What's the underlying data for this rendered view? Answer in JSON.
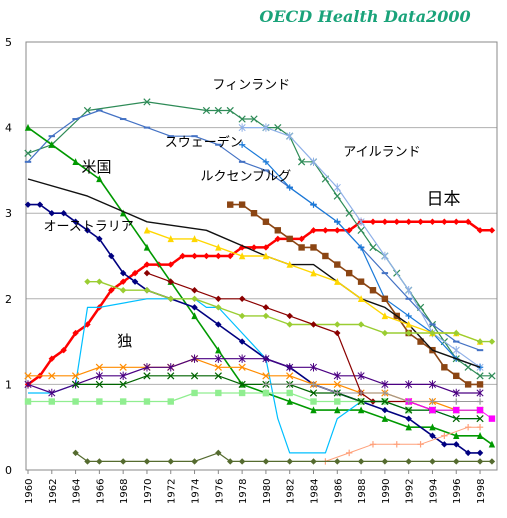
{
  "chart_data": {
    "type": "line",
    "title": "OECD Health Data2000",
    "title_color": "#1aa37a",
    "xlabel": "",
    "ylabel": "",
    "xlim": [
      1960,
      1999
    ],
    "ylim": [
      0,
      5
    ],
    "x_ticks": [
      1960,
      1962,
      1964,
      1966,
      1968,
      1970,
      1972,
      1974,
      1976,
      1978,
      1980,
      1982,
      1984,
      1986,
      1988,
      1990,
      1992,
      1994,
      1996,
      1998
    ],
    "y_ticks": [
      0,
      1,
      2,
      3,
      4,
      5
    ],
    "grid": "horizontal",
    "series": [
      {
        "name": "日本",
        "color": "#ff0000",
        "marker": "diamond",
        "width": 2.5,
        "x": [
          1960,
          1961,
          1962,
          1963,
          1964,
          1965,
          1966,
          1967,
          1968,
          1969,
          1970,
          1971,
          1972,
          1973,
          1974,
          1975,
          1976,
          1977,
          1978,
          1979,
          1980,
          1981,
          1982,
          1983,
          1984,
          1985,
          1986,
          1987,
          1988,
          1989,
          1990,
          1991,
          1992,
          1993,
          1994,
          1995,
          1996,
          1997,
          1998,
          1999
        ],
        "y": [
          1.0,
          1.1,
          1.3,
          1.4,
          1.6,
          1.7,
          1.9,
          2.1,
          2.2,
          2.3,
          2.4,
          2.4,
          2.4,
          2.5,
          2.5,
          2.5,
          2.5,
          2.5,
          2.6,
          2.6,
          2.6,
          2.7,
          2.7,
          2.7,
          2.8,
          2.8,
          2.8,
          2.8,
          2.9,
          2.9,
          2.9,
          2.9,
          2.9,
          2.9,
          2.9,
          2.9,
          2.9,
          2.9,
          2.8,
          2.8
        ]
      },
      {
        "name": "フィンランド",
        "color": "#2e8b57",
        "marker": "cross",
        "width": 1.2,
        "x": [
          1960,
          1962,
          1965,
          1970,
          1975,
          1976,
          1977,
          1978,
          1979,
          1980,
          1981,
          1982,
          1983,
          1984,
          1985,
          1986,
          1987,
          1988,
          1989,
          1990,
          1991,
          1992,
          1993,
          1994,
          1995,
          1996,
          1997,
          1998,
          1999
        ],
        "y": [
          3.7,
          3.8,
          4.2,
          4.3,
          4.2,
          4.2,
          4.2,
          4.1,
          4.1,
          4.0,
          4.0,
          3.9,
          3.6,
          3.6,
          3.4,
          3.2,
          3.0,
          2.8,
          2.6,
          2.5,
          2.3,
          2.1,
          1.9,
          1.7,
          1.5,
          1.3,
          1.2,
          1.1,
          1.1
        ]
      },
      {
        "name": "スウェーデン",
        "color": "#4472c4",
        "marker": "dash",
        "width": 1.2,
        "x": [
          1960,
          1962,
          1964,
          1966,
          1968,
          1970,
          1972,
          1974,
          1976,
          1978,
          1980,
          1982,
          1984,
          1986,
          1988,
          1990,
          1992,
          1994,
          1996,
          1998
        ],
        "y": [
          3.6,
          3.9,
          4.1,
          4.2,
          4.1,
          4.0,
          3.9,
          3.9,
          3.8,
          3.6,
          3.5,
          3.3,
          3.1,
          2.9,
          2.6,
          2.3,
          2.0,
          1.7,
          1.5,
          1.4
        ]
      },
      {
        "name": "アイルランド",
        "color": "#8fb0e8",
        "marker": "star",
        "width": 1.2,
        "x": [
          1978,
          1980,
          1982,
          1984,
          1986,
          1988,
          1990,
          1992,
          1994,
          1996,
          1998
        ],
        "y": [
          4.0,
          4.0,
          3.9,
          3.6,
          3.3,
          2.9,
          2.5,
          2.1,
          1.6,
          1.4,
          1.2
        ]
      },
      {
        "name": "",
        "color": "#1a7ad9",
        "marker": "plus",
        "width": 1.2,
        "x": [
          1978,
          1980,
          1982,
          1984,
          1986,
          1988,
          1990,
          1992,
          1994,
          1996,
          1998
        ],
        "y": [
          3.8,
          3.6,
          3.3,
          3.1,
          2.9,
          2.6,
          2.0,
          1.8,
          1.6,
          1.3,
          1.2
        ]
      },
      {
        "name": "ルクセンブルグ",
        "color": "#8b4513",
        "marker": "square",
        "width": 1.6,
        "x": [
          1977,
          1978,
          1979,
          1980,
          1981,
          1982,
          1983,
          1984,
          1985,
          1986,
          1987,
          1988,
          1989,
          1990,
          1991,
          1992,
          1993,
          1994,
          1995,
          1996,
          1997,
          1998
        ],
        "y": [
          3.1,
          3.1,
          3.0,
          2.9,
          2.8,
          2.7,
          2.6,
          2.6,
          2.5,
          2.4,
          2.3,
          2.2,
          2.1,
          2.0,
          1.8,
          1.6,
          1.5,
          1.4,
          1.2,
          1.1,
          1.0,
          1.0
        ]
      },
      {
        "name": "米国",
        "color": "#009900",
        "marker": "triangle",
        "width": 1.6,
        "x": [
          1960,
          1962,
          1964,
          1966,
          1968,
          1970,
          1972,
          1974,
          1976,
          1978,
          1980,
          1982,
          1984,
          1986,
          1988,
          1990,
          1992,
          1994,
          1996,
          1998,
          1999
        ],
        "y": [
          4.0,
          3.8,
          3.6,
          3.4,
          3.0,
          2.6,
          2.2,
          1.8,
          1.4,
          1.0,
          0.9,
          0.8,
          0.7,
          0.7,
          0.7,
          0.6,
          0.5,
          0.5,
          0.4,
          0.4,
          0.3
        ]
      },
      {
        "name": "オーストラリア",
        "color": "#000080",
        "marker": "diamond",
        "width": 1.6,
        "x": [
          1960,
          1961,
          1962,
          1963,
          1964,
          1965,
          1966,
          1967,
          1968,
          1969,
          1970,
          1972,
          1974,
          1976,
          1978,
          1980,
          1982,
          1984,
          1986,
          1988,
          1990,
          1992,
          1994,
          1995,
          1996,
          1997,
          1998
        ],
        "y": [
          3.1,
          3.1,
          3.0,
          3.0,
          2.9,
          2.8,
          2.7,
          2.5,
          2.3,
          2.2,
          2.1,
          2.0,
          1.9,
          1.7,
          1.5,
          1.3,
          1.2,
          1.0,
          0.9,
          0.8,
          0.7,
          0.6,
          0.4,
          0.3,
          0.3,
          0.2,
          0.2
        ]
      },
      {
        "name": "独",
        "color": "#00bfff",
        "marker": "none",
        "width": 1.2,
        "x": [
          1960,
          1962,
          1964,
          1965,
          1966,
          1970,
          1974,
          1975,
          1976,
          1978,
          1980,
          1981,
          1982,
          1983,
          1984,
          1985,
          1986,
          1987,
          1988,
          1990,
          1992,
          1994,
          1996,
          1998
        ],
        "y": [
          0.9,
          0.9,
          1.0,
          1.9,
          1.9,
          2.0,
          2.0,
          1.9,
          1.9,
          1.6,
          1.3,
          0.6,
          0.2,
          0.2,
          0.2,
          0.2,
          0.6,
          0.7,
          0.8,
          0.8,
          0.7,
          0.7,
          0.6,
          0.6
        ]
      },
      {
        "name": "",
        "color": "#111111",
        "marker": "none",
        "width": 1.4,
        "x": [
          1960,
          1965,
          1970,
          1975,
          1980,
          1982,
          1984,
          1986,
          1988,
          1990,
          1992,
          1994,
          1996,
          1998
        ],
        "y": [
          3.4,
          3.2,
          2.9,
          2.8,
          2.5,
          2.4,
          2.4,
          2.2,
          2.0,
          1.9,
          1.7,
          1.4,
          1.3,
          1.2
        ]
      },
      {
        "name": "",
        "color": "#ffd700",
        "marker": "triangle",
        "width": 1.4,
        "x": [
          1970,
          1972,
          1974,
          1976,
          1978,
          1980,
          1982,
          1984,
          1986,
          1988,
          1990,
          1992,
          1994,
          1996,
          1998
        ],
        "y": [
          2.8,
          2.7,
          2.7,
          2.6,
          2.5,
          2.5,
          2.4,
          2.3,
          2.2,
          2.0,
          1.8,
          1.7,
          1.6,
          1.6,
          1.5
        ]
      },
      {
        "name": "",
        "color": "#9acd32",
        "marker": "diamond",
        "width": 1.4,
        "x": [
          1965,
          1966,
          1968,
          1970,
          1972,
          1974,
          1976,
          1978,
          1980,
          1982,
          1984,
          1986,
          1988,
          1990,
          1992,
          1994,
          1996,
          1998,
          1999
        ],
        "y": [
          2.2,
          2.2,
          2.1,
          2.1,
          2.0,
          2.0,
          1.9,
          1.8,
          1.8,
          1.7,
          1.7,
          1.7,
          1.7,
          1.6,
          1.6,
          1.6,
          1.6,
          1.5,
          1.5
        ]
      },
      {
        "name": "",
        "color": "#ff8c00",
        "marker": "cross",
        "width": 1.2,
        "x": [
          1960,
          1962,
          1964,
          1966,
          1968,
          1970,
          1972,
          1974,
          1976,
          1978,
          1980,
          1982,
          1984,
          1986,
          1988,
          1990,
          1992,
          1994,
          1996,
          1998
        ],
        "y": [
          1.1,
          1.1,
          1.1,
          1.2,
          1.2,
          1.2,
          1.2,
          1.3,
          1.2,
          1.2,
          1.1,
          1.1,
          1.0,
          1.0,
          0.9,
          0.9,
          0.8,
          0.8,
          0.7,
          0.7
        ]
      },
      {
        "name": "",
        "color": "#4b0082",
        "marker": "star",
        "width": 1.2,
        "x": [
          1960,
          1962,
          1964,
          1966,
          1968,
          1970,
          1972,
          1974,
          1976,
          1978,
          1980,
          1982,
          1984,
          1986,
          1988,
          1990,
          1992,
          1994,
          1996,
          1998
        ],
        "y": [
          1.0,
          0.9,
          1.0,
          1.1,
          1.1,
          1.2,
          1.2,
          1.3,
          1.3,
          1.3,
          1.3,
          1.2,
          1.2,
          1.1,
          1.1,
          1.0,
          1.0,
          1.0,
          0.9,
          0.9
        ]
      },
      {
        "name": "",
        "color": "#8b0000",
        "marker": "diamond",
        "width": 1.2,
        "x": [
          1970,
          1972,
          1974,
          1976,
          1978,
          1980,
          1982,
          1984,
          1986,
          1988,
          1989,
          1990,
          1992,
          1994,
          1996,
          1998
        ],
        "y": [
          2.3,
          2.2,
          2.1,
          2.0,
          2.0,
          1.9,
          1.8,
          1.7,
          1.6,
          0.9,
          0.8,
          0.8,
          0.8,
          0.7,
          0.7,
          0.7
        ]
      },
      {
        "name": "",
        "color": "#90ee90",
        "marker": "square",
        "width": 1.2,
        "x": [
          1960,
          1962,
          1964,
          1966,
          1968,
          1970,
          1972,
          1974,
          1976,
          1978,
          1980,
          1982,
          1984,
          1986,
          1988,
          1990,
          1992,
          1994,
          1996,
          1998
        ],
        "y": [
          0.8,
          0.8,
          0.8,
          0.8,
          0.8,
          0.8,
          0.8,
          0.9,
          0.9,
          0.9,
          0.9,
          0.9,
          0.8,
          0.8,
          0.8,
          0.8,
          0.7,
          0.7,
          0.7,
          0.7
        ]
      },
      {
        "name": "",
        "color": "#006400",
        "marker": "cross",
        "width": 1.2,
        "x": [
          1964,
          1966,
          1968,
          1970,
          1972,
          1974,
          1976,
          1978,
          1980,
          1982,
          1984,
          1986,
          1988,
          1990,
          1992,
          1994,
          1996,
          1998
        ],
        "y": [
          1.0,
          1.0,
          1.0,
          1.1,
          1.1,
          1.1,
          1.1,
          1.0,
          1.0,
          1.0,
          0.9,
          0.9,
          0.8,
          0.8,
          0.7,
          0.7,
          0.6,
          0.6
        ]
      },
      {
        "name": "",
        "color": "#ff00ff",
        "marker": "square",
        "width": 1.0,
        "x": [
          1992,
          1994,
          1996,
          1998,
          1999
        ],
        "y": [
          0.8,
          0.7,
          0.7,
          0.7,
          0.6
        ]
      },
      {
        "name": "",
        "color": "#999999",
        "marker": "plus",
        "width": 1.0,
        "x": [
          1980,
          1982,
          1984,
          1986,
          1988,
          1990,
          1992,
          1994,
          1996,
          1998
        ],
        "y": [
          1.0,
          1.0,
          1.0,
          0.9,
          0.9,
          0.9,
          0.8,
          0.8,
          0.8,
          0.8
        ]
      },
      {
        "name": "",
        "color": "#ffa07a",
        "marker": "plus",
        "width": 1.0,
        "x": [
          1985,
          1987,
          1989,
          1991,
          1993,
          1995,
          1997,
          1998
        ],
        "y": [
          0.1,
          0.2,
          0.3,
          0.3,
          0.3,
          0.4,
          0.5,
          0.5
        ]
      },
      {
        "name": "",
        "color": "#556b2f",
        "marker": "diamond",
        "width": 1.2,
        "x": [
          1964,
          1965,
          1966,
          1968,
          1970,
          1972,
          1974,
          1976,
          1977,
          1978,
          1980,
          1982,
          1984,
          1986,
          1988,
          1990,
          1992,
          1994,
          1996,
          1998,
          1999
        ],
        "y": [
          0.2,
          0.1,
          0.1,
          0.1,
          0.1,
          0.1,
          0.1,
          0.2,
          0.1,
          0.1,
          0.1,
          0.1,
          0.1,
          0.1,
          0.1,
          0.1,
          0.1,
          0.1,
          0.1,
          0.1,
          0.1
        ]
      }
    ],
    "annotations": [
      {
        "text": "フィンランド",
        "x": 1975.5,
        "y": 4.45
      },
      {
        "text": "スウェーデン",
        "x": 1971.5,
        "y": 3.78
      },
      {
        "text": "アイルランド",
        "x": 1986.5,
        "y": 3.67
      },
      {
        "text": "米国",
        "x": 1964.5,
        "y": 3.48
      },
      {
        "text": "ルクセンブルグ",
        "x": 1974.5,
        "y": 3.38
      },
      {
        "text": "日本",
        "x": 1993.5,
        "y": 3.1
      },
      {
        "text": "オーストラリア",
        "x": 1961.3,
        "y": 2.8
      },
      {
        "text": "独",
        "x": 1967.5,
        "y": 1.45
      }
    ]
  }
}
